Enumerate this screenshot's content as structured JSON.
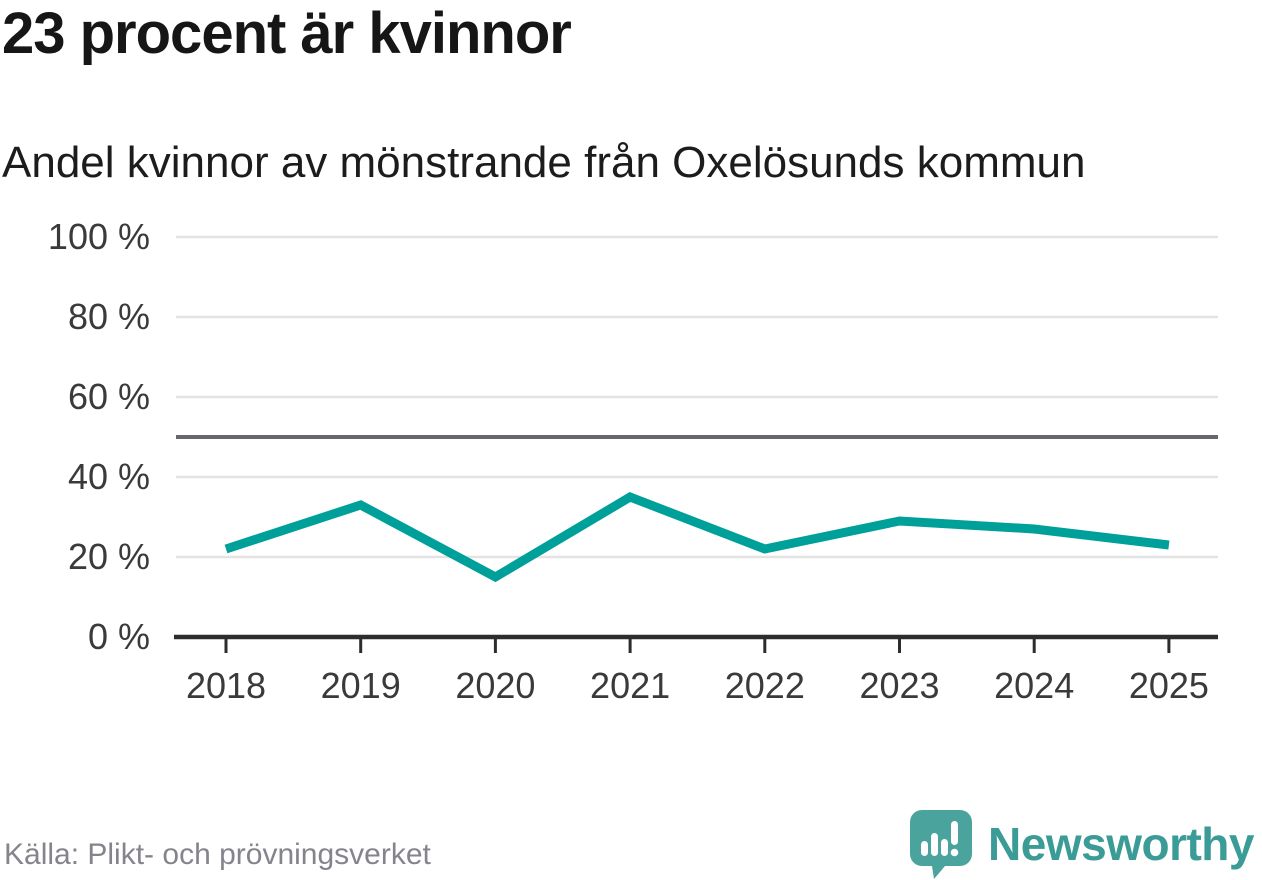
{
  "header": {
    "title": "23 procent är kvinnor",
    "subtitle": "Andel kvinnor av mönstrande från Oxelösunds kommun"
  },
  "footer": {
    "source": "Källa: Plikt- och prövningsverket",
    "brand": "Newsworthy"
  },
  "colors": {
    "line": "#00a09a",
    "grid": "#e3e3e3",
    "reference_line": "#66666e",
    "axis": "#2d2d2d",
    "tick_label": "#3a3a3a",
    "title": "#161616",
    "source_text": "#84848c",
    "brand_teal": "#3b9b96",
    "logo_bubble": "#4aa39c",
    "background": "#ffffff"
  },
  "chart_data": {
    "type": "line",
    "title": "23 procent är kvinnor",
    "subtitle": "Andel kvinnor av mönstrande från Oxelösunds kommun",
    "categories": [
      "2018",
      "2019",
      "2020",
      "2021",
      "2022",
      "2023",
      "2024",
      "2025"
    ],
    "values": [
      22,
      33,
      15,
      35,
      22,
      29,
      27,
      23
    ],
    "unit": "%",
    "ylabel": "",
    "xlabel": "",
    "ylim": [
      0,
      100
    ],
    "yticks": [
      0,
      20,
      40,
      60,
      80,
      100
    ],
    "ytick_suffix": " %",
    "reference_line": 50,
    "grid": true,
    "legend": false,
    "markers": false,
    "source": "Källa: Plikt- och prövningsverket"
  }
}
